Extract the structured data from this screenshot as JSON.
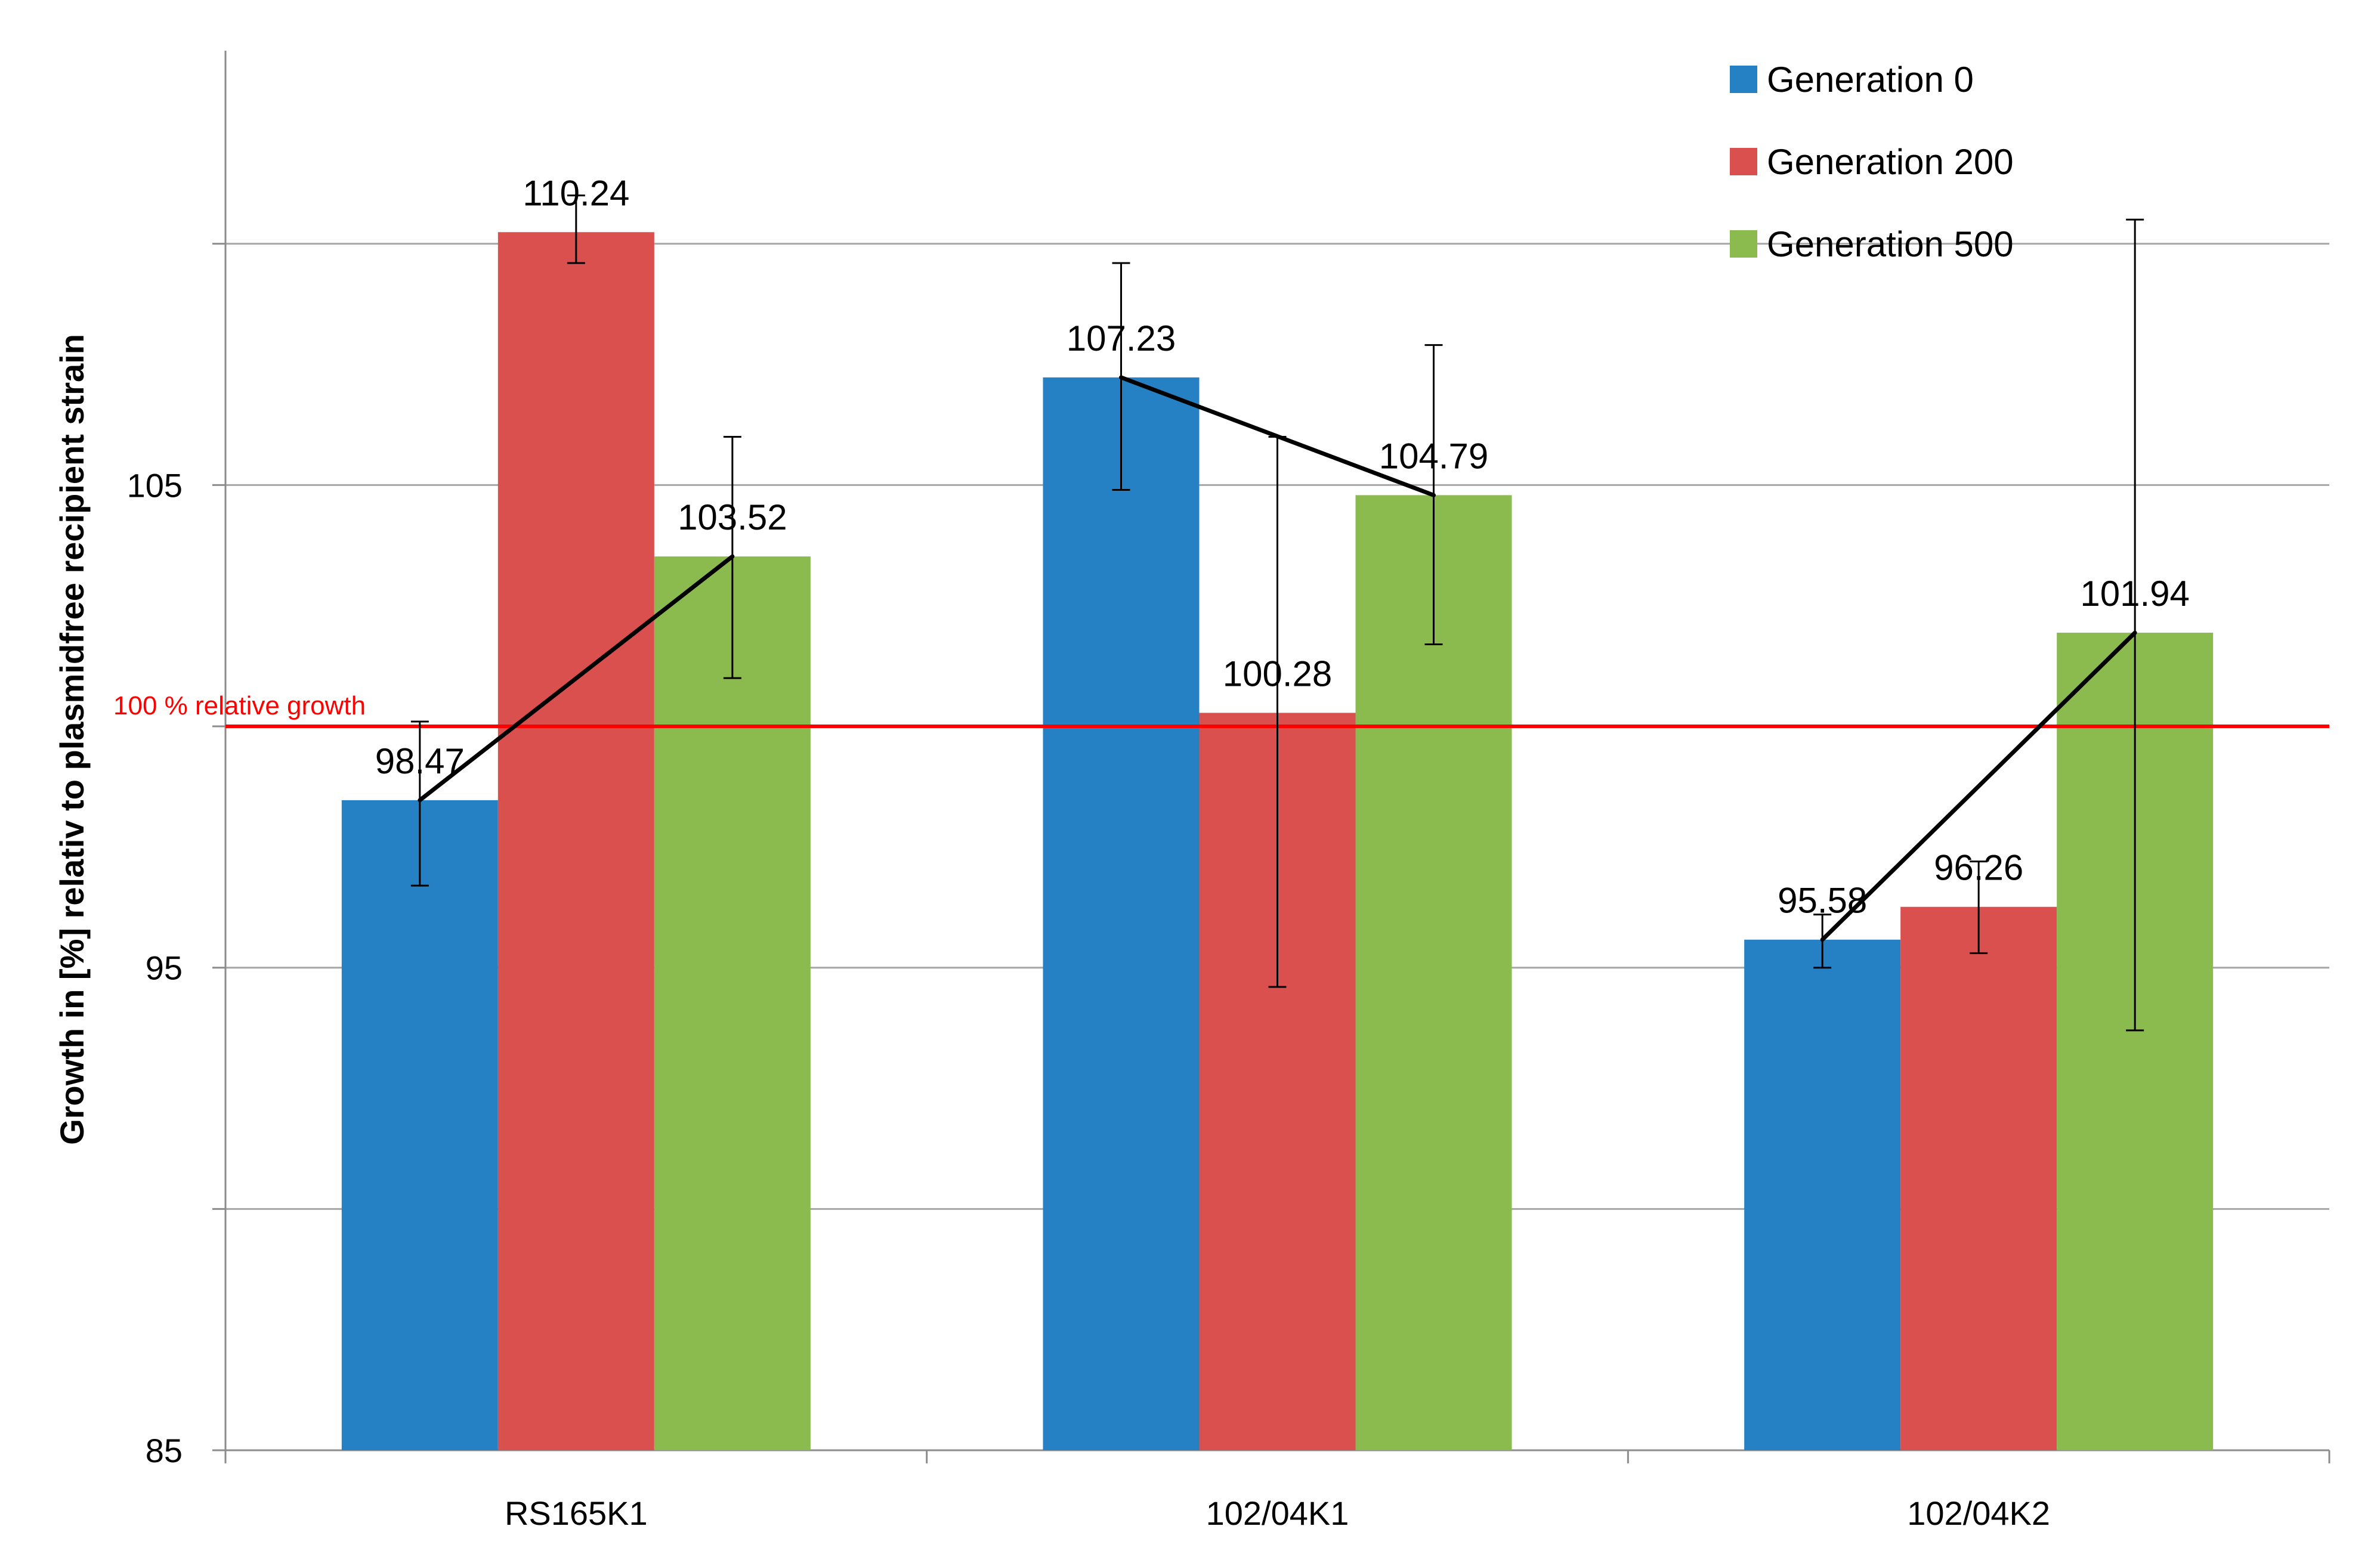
{
  "chart_data": {
    "type": "bar",
    "title": "",
    "xlabel": "",
    "ylabel": "Growth in [%] relativ to plasmidfree recipient strain",
    "ylim": [
      85,
      114
    ],
    "yticks": [
      85,
      95,
      105
    ],
    "ytick_labels": [
      "85",
      "95",
      "105"
    ],
    "grid": true,
    "legend_position": "top-right",
    "categories": [
      "RS165K1",
      "102/04K1",
      "102/04K2"
    ],
    "series": [
      {
        "name": "Generation 0",
        "color": "#2581c4",
        "values": [
          98.47,
          107.23,
          95.58
        ],
        "labels": [
          "98.47",
          "107.23",
          "95.58"
        ],
        "error": [
          [
            96.7,
            100.1
          ],
          [
            104.9,
            109.6
          ],
          [
            95.0,
            96.1
          ]
        ]
      },
      {
        "name": "Generation 200",
        "color": "#d9504e",
        "values": [
          110.24,
          100.28,
          96.26
        ],
        "labels": [
          "110.24",
          "100.28",
          "96.26"
        ],
        "error": [
          [
            109.6,
            111.0
          ],
          [
            94.6,
            106.0
          ],
          [
            95.3,
            97.2
          ]
        ]
      },
      {
        "name": "Generation 500",
        "color": "#8bbb4e",
        "values": [
          103.52,
          104.79,
          101.94
        ],
        "labels": [
          "103.52",
          "104.79",
          "101.94"
        ],
        "error": [
          [
            101.0,
            106.0
          ],
          [
            101.7,
            107.9
          ],
          [
            93.7,
            110.5
          ]
        ]
      }
    ],
    "reference_line": {
      "value": 100,
      "label": "100 % relative growth",
      "color": "#ff0000"
    },
    "trend_line_color": "#000000"
  }
}
